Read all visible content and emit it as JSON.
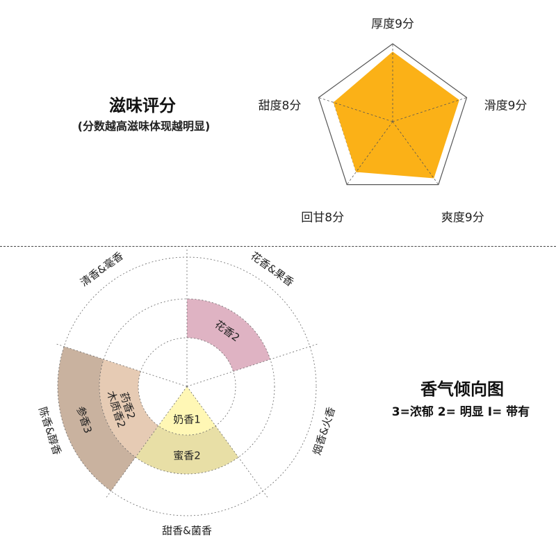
{
  "taste_section": {
    "title": "滋味评分",
    "subtitle": "(分数越高滋味体现越明显)"
  },
  "aroma_section": {
    "title": "香气倾向图",
    "legend": "3=浓郁  2= 明显  I= 带有"
  },
  "chart_data": [
    {
      "type": "radar",
      "axes": [
        "厚度9分",
        "滑度9分",
        "爽度9分",
        "回甘8分",
        "甜度8分"
      ],
      "values": [
        9,
        9,
        9,
        8,
        8
      ],
      "max": 10,
      "fill_color": "#FBB117",
      "grid": "dashed"
    },
    {
      "type": "polar-area",
      "max": 3,
      "categories": [
        {
          "name": "花香&果香",
          "segments": [
            {
              "label": "花香2",
              "value": 2,
              "color": "#DFB3C3"
            }
          ]
        },
        {
          "name": "烟香&火香",
          "segments": []
        },
        {
          "name": "甜香&菌香",
          "segments": [
            {
              "label": "奶香1",
              "value": 1,
              "color": "#FFF7B5"
            },
            {
              "label": "蜜香2",
              "value": 2,
              "color": "#E8DFA6"
            }
          ]
        },
        {
          "name": "陈香&醇香",
          "segments": [
            {
              "label": "药香2",
              "label2": "木质香2",
              "value": 2,
              "color": "#E6CBB4"
            },
            {
              "label": "参香3",
              "value": 3,
              "color": "#C9B29F"
            }
          ]
        },
        {
          "name": "清香&毫香",
          "segments": []
        }
      ]
    }
  ]
}
